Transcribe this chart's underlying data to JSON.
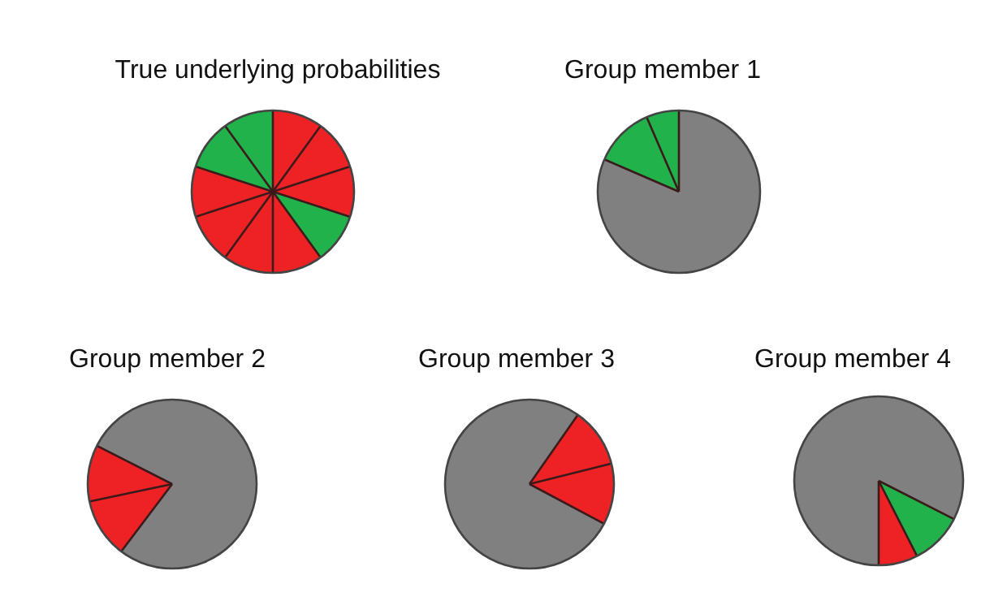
{
  "chart_data": [
    {
      "type": "pie",
      "title": "True underlying probabilities",
      "categories": [
        null,
        null,
        null,
        null,
        null,
        null,
        null,
        null,
        null,
        null
      ],
      "values": [
        10,
        10,
        10,
        10,
        10,
        10,
        10,
        10,
        10,
        10
      ],
      "colors": [
        "#ee2224",
        "#ee2224",
        "#ee2224",
        "#22b24c",
        "#ee2224",
        "#ee2224",
        "#ee2224",
        "#ee2224",
        "#22b24c",
        "#22b24c"
      ]
    },
    {
      "type": "pie",
      "title": "Group member 1",
      "categories": [
        null,
        null,
        null
      ],
      "values": [
        81.5,
        12,
        6.5
      ],
      "colors": [
        "#808080",
        "#22b24c",
        "#22b24c"
      ]
    },
    {
      "type": "pie",
      "title": "Group member 2",
      "categories": [
        null,
        null,
        null,
        null
      ],
      "values": [
        60.3,
        11.4,
        10.8,
        17.5
      ],
      "colors": [
        "#808080",
        "#ee2224",
        "#ee2224",
        "#808080"
      ]
    },
    {
      "type": "pie",
      "title": "Group member 3",
      "categories": [
        null,
        null,
        null,
        null
      ],
      "values": [
        9.7,
        11.4,
        11.7,
        67.2
      ],
      "colors": [
        "#808080",
        "#ee2224",
        "#ee2224",
        "#808080"
      ]
    },
    {
      "type": "pie",
      "title": "Group member 4",
      "categories": [
        null,
        null,
        null,
        null
      ],
      "values": [
        32.5,
        10,
        7.5,
        50
      ],
      "colors": [
        "#808080",
        "#22b24c",
        "#ee2224",
        "#808080"
      ]
    }
  ]
}
